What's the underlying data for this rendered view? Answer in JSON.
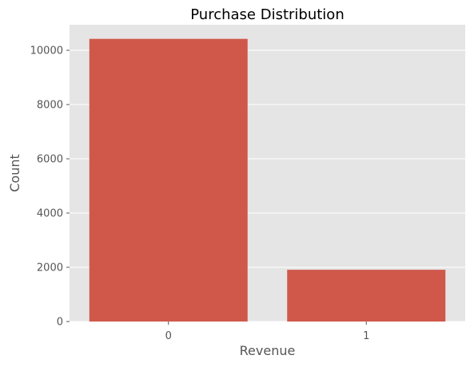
{
  "chart_data": {
    "type": "bar",
    "title": "Purchase Distribution",
    "xlabel": "Revenue",
    "ylabel": "Count",
    "categories": [
      "0",
      "1"
    ],
    "values": [
      10422,
      1908
    ],
    "ylim": [
      0,
      10943
    ],
    "yticks": [
      0,
      2000,
      4000,
      6000,
      8000,
      10000
    ],
    "grid": true,
    "colors": {
      "bar": "#d0584a",
      "plot_background": "#e5e5e5",
      "grid": "#ffffff"
    }
  }
}
